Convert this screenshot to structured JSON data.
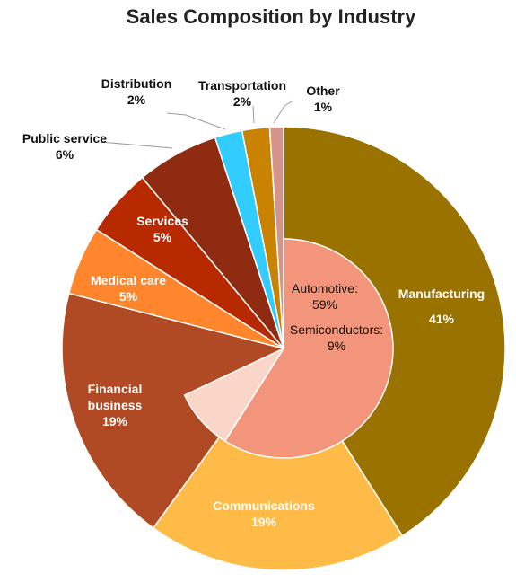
{
  "chart_data": {
    "type": "pie",
    "title": "Sales Composition by Industry",
    "slices": [
      {
        "label": "Manufacturing",
        "value": 41,
        "display": "41%",
        "color": "#9A7200"
      },
      {
        "label": "Communications",
        "value": 19,
        "display": "19%",
        "color": "#FFBB47"
      },
      {
        "label": "Financial business",
        "value": 19,
        "display": "19%",
        "color": "#B04A25"
      },
      {
        "label": "Medical care",
        "value": 5,
        "display": "5%",
        "color": "#FF862C"
      },
      {
        "label": "Services",
        "value": 5,
        "display": "5%",
        "color": "#B72A00"
      },
      {
        "label": "Public service",
        "value": 6,
        "display": "6%",
        "color": "#8E2B11"
      },
      {
        "label": "Distribution",
        "value": 2,
        "display": "2%",
        "color": "#33CCFF"
      },
      {
        "label": "Transportation",
        "value": 2,
        "display": "2%",
        "color": "#C98300"
      },
      {
        "label": "Other",
        "value": 1,
        "display": "1%",
        "color": "#D4948C"
      }
    ],
    "breakdown": {
      "of": "Manufacturing",
      "items": [
        {
          "label": "Automotive:",
          "value": 59,
          "display": "59%",
          "color": "#F2957A"
        },
        {
          "label": "Semiconductors:",
          "value": 9,
          "display": "9%",
          "color": "#FAD6C8"
        }
      ]
    }
  }
}
